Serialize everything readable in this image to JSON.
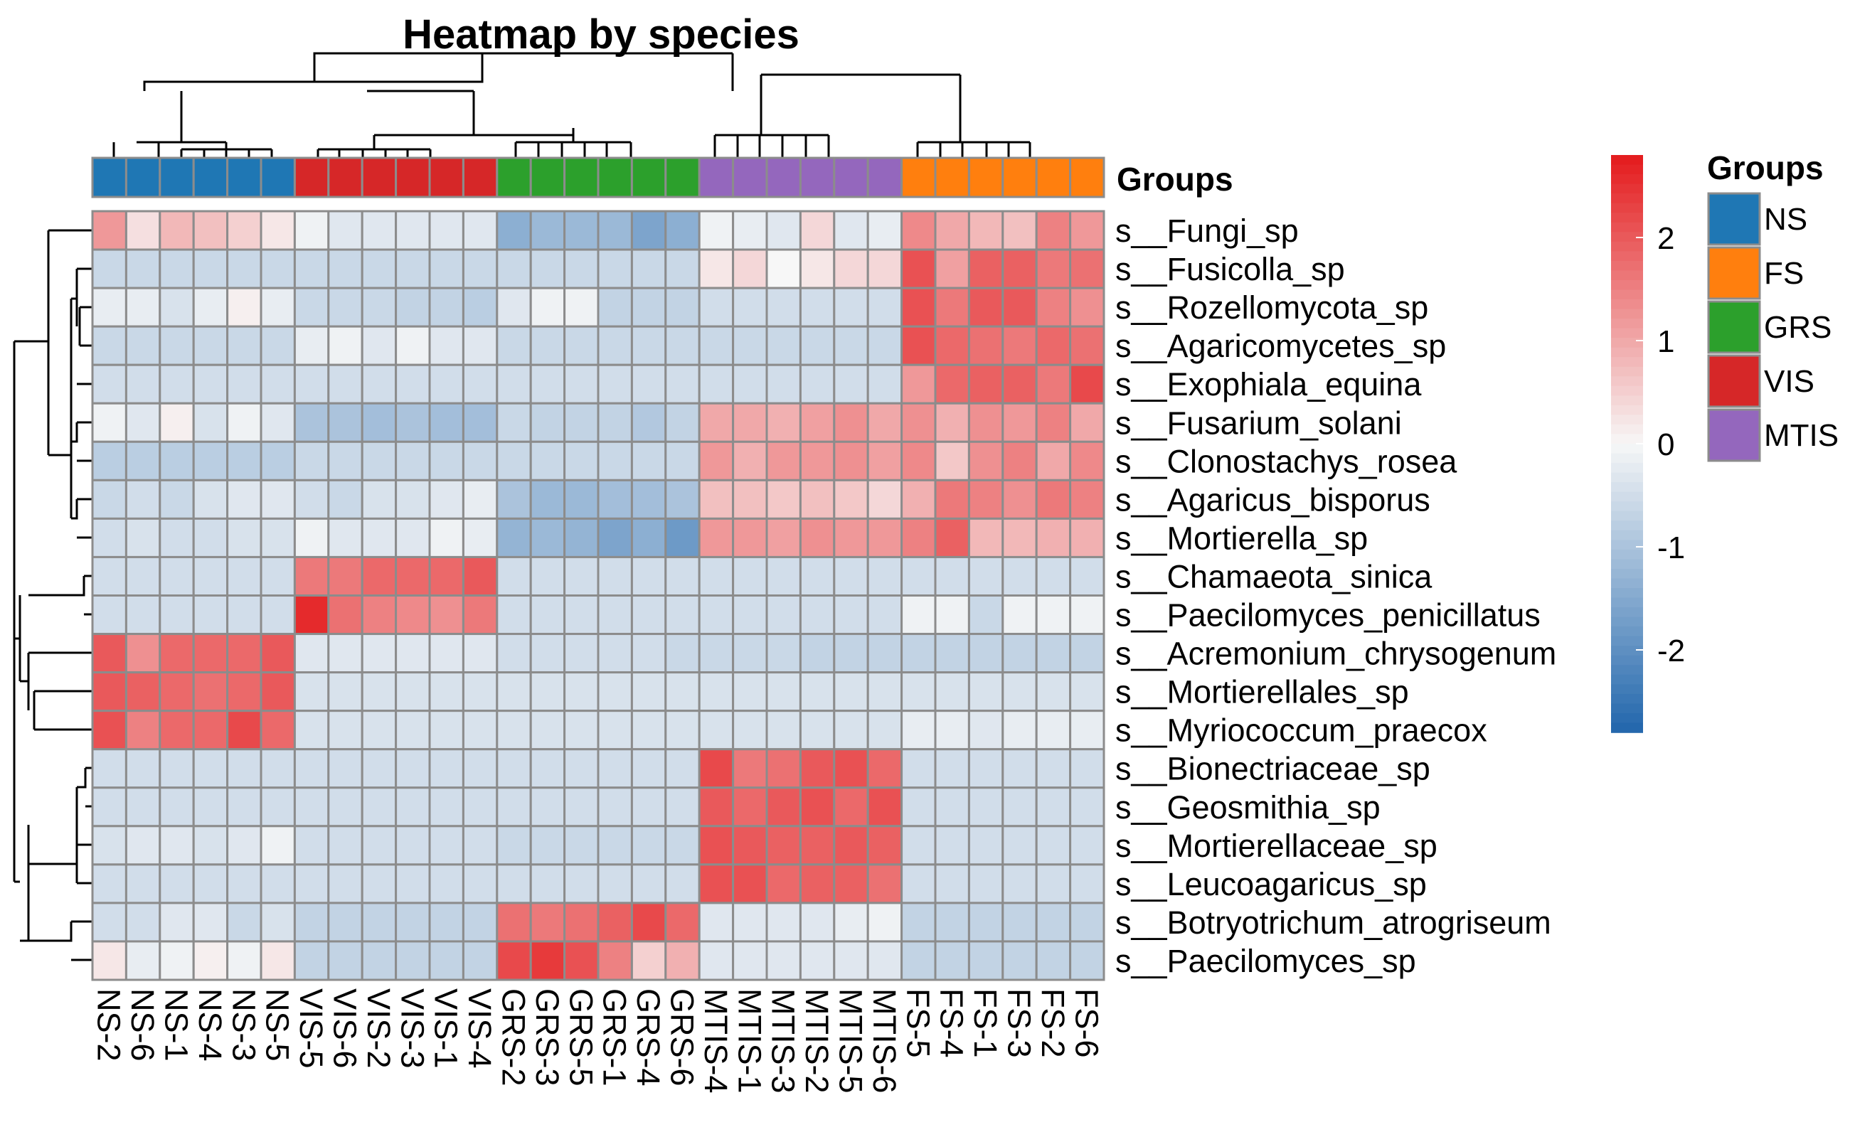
{
  "chart_data": {
    "type": "heatmap",
    "title": "Heatmap by species",
    "annotation_label": "Groups",
    "columns": [
      "NS-2",
      "NS-6",
      "NS-1",
      "NS-4",
      "NS-3",
      "NS-5",
      "VIS-5",
      "VIS-6",
      "VIS-2",
      "VIS-3",
      "VIS-1",
      "VIS-4",
      "GRS-2",
      "GRS-3",
      "GRS-5",
      "GRS-1",
      "GRS-4",
      "GRS-6",
      "MTIS-4",
      "MTIS-1",
      "MTIS-3",
      "MTIS-2",
      "MTIS-5",
      "MTIS-6",
      "FS-5",
      "FS-4",
      "FS-1",
      "FS-3",
      "FS-2",
      "FS-6"
    ],
    "column_groups": [
      "NS",
      "NS",
      "NS",
      "NS",
      "NS",
      "NS",
      "VIS",
      "VIS",
      "VIS",
      "VIS",
      "VIS",
      "VIS",
      "GRS",
      "GRS",
      "GRS",
      "GRS",
      "GRS",
      "GRS",
      "MTIS",
      "MTIS",
      "MTIS",
      "MTIS",
      "MTIS",
      "MTIS",
      "FS",
      "FS",
      "FS",
      "FS",
      "FS",
      "FS"
    ],
    "rows": [
      "s__Fungi_sp",
      "s__Fusicolla_sp",
      "s__Rozellomycota_sp",
      "s__Agaricomycetes_sp",
      "s__Exophiala_equina",
      "s__Fusarium_solani",
      "s__Clonostachys_rosea",
      "s__Agaricus_bisporus",
      "s__Mortierella_sp",
      "s__Chamaeota_sinica",
      "s__Paecilomyces_penicillatus",
      "s__Acremonium_chrysogenum",
      "s__Mortierellales_sp",
      "s__Myriococcum_praecox",
      "s__Bionectriaceae_sp",
      "s__Geosmithia_sp",
      "s__Mortierellaceae_sp",
      "s__Leucoagaricus_sp",
      "s__Botryotrichum_atrogriseum",
      "s__Paecilomyces_sp"
    ],
    "values": [
      [
        1.2,
        0.3,
        0.8,
        0.7,
        0.5,
        0.2,
        -0.1,
        -0.3,
        -0.3,
        -0.3,
        -0.3,
        -0.3,
        -1.4,
        -1.2,
        -1.2,
        -1.2,
        -1.6,
        -1.4,
        -0.1,
        -0.2,
        -0.3,
        0.4,
        -0.3,
        -0.2,
        1.4,
        1.0,
        0.8,
        0.7,
        1.5,
        1.2
      ],
      [
        -0.6,
        -0.6,
        -0.6,
        -0.6,
        -0.6,
        -0.6,
        -0.6,
        -0.6,
        -0.6,
        -0.6,
        -0.6,
        -0.6,
        -0.6,
        -0.6,
        -0.6,
        -0.6,
        -0.6,
        -0.6,
        0.2,
        0.4,
        0.0,
        0.2,
        0.4,
        0.4,
        2.1,
        1.1,
        1.9,
        1.9,
        1.6,
        1.7
      ],
      [
        -0.2,
        -0.2,
        -0.4,
        -0.2,
        0.1,
        -0.2,
        -0.6,
        -0.6,
        -0.6,
        -0.7,
        -0.7,
        -0.8,
        -0.3,
        -0.1,
        -0.1,
        -0.7,
        -0.7,
        -0.7,
        -0.5,
        -0.5,
        -0.5,
        -0.5,
        -0.5,
        -0.5,
        2.1,
        1.6,
        2.0,
        2.0,
        1.5,
        1.3
      ],
      [
        -0.6,
        -0.6,
        -0.6,
        -0.6,
        -0.6,
        -0.6,
        -0.2,
        -0.1,
        -0.3,
        -0.1,
        -0.3,
        -0.3,
        -0.6,
        -0.6,
        -0.6,
        -0.6,
        -0.6,
        -0.6,
        -0.6,
        -0.6,
        -0.6,
        -0.6,
        -0.6,
        -0.6,
        2.1,
        1.8,
        1.7,
        1.6,
        1.8,
        1.7
      ],
      [
        -0.5,
        -0.5,
        -0.5,
        -0.5,
        -0.5,
        -0.5,
        -0.5,
        -0.5,
        -0.5,
        -0.5,
        -0.5,
        -0.5,
        -0.5,
        -0.5,
        -0.5,
        -0.5,
        -0.5,
        -0.5,
        -0.5,
        -0.5,
        -0.5,
        -0.5,
        -0.5,
        -0.5,
        1.2,
        1.8,
        1.9,
        1.9,
        1.6,
        2.2
      ],
      [
        -0.1,
        -0.3,
        0.1,
        -0.4,
        -0.1,
        -0.3,
        -1.0,
        -1.0,
        -1.1,
        -1.0,
        -1.1,
        -1.1,
        -0.6,
        -0.7,
        -0.7,
        -0.7,
        -0.9,
        -0.7,
        1.0,
        1.0,
        0.9,
        1.1,
        1.3,
        1.0,
        1.3,
        0.9,
        1.3,
        1.2,
        1.5,
        1.0
      ],
      [
        -0.8,
        -0.8,
        -0.8,
        -0.8,
        -0.8,
        -0.8,
        -0.6,
        -0.6,
        -0.6,
        -0.6,
        -0.6,
        -0.6,
        -0.6,
        -0.6,
        -0.6,
        -0.6,
        -0.6,
        -0.6,
        1.2,
        0.9,
        1.2,
        1.2,
        1.3,
        1.1,
        1.4,
        0.6,
        1.3,
        1.5,
        1.0,
        1.4
      ],
      [
        -0.6,
        -0.5,
        -0.6,
        -0.4,
        -0.3,
        -0.3,
        -0.5,
        -0.6,
        -0.4,
        -0.4,
        -0.3,
        -0.2,
        -1.0,
        -1.2,
        -1.2,
        -1.1,
        -1.1,
        -1.0,
        0.7,
        0.7,
        0.6,
        0.7,
        0.6,
        0.4,
        0.9,
        1.6,
        1.5,
        1.3,
        1.6,
        1.5
      ],
      [
        -0.5,
        -0.4,
        -0.5,
        -0.5,
        -0.4,
        -0.4,
        -0.1,
        -0.3,
        -0.3,
        -0.3,
        -0.1,
        -0.2,
        -1.3,
        -1.2,
        -1.3,
        -1.6,
        -1.4,
        -1.8,
        1.2,
        1.2,
        1.1,
        1.3,
        1.2,
        1.2,
        1.5,
        1.9,
        0.8,
        0.8,
        0.9,
        0.9
      ],
      [
        -0.5,
        -0.5,
        -0.5,
        -0.5,
        -0.5,
        -0.5,
        1.6,
        1.6,
        1.8,
        1.8,
        1.8,
        2.0,
        -0.5,
        -0.5,
        -0.5,
        -0.5,
        -0.5,
        -0.5,
        -0.5,
        -0.5,
        -0.5,
        -0.5,
        -0.5,
        -0.5,
        -0.5,
        -0.5,
        -0.5,
        -0.5,
        -0.5,
        -0.5
      ],
      [
        -0.5,
        -0.5,
        -0.5,
        -0.5,
        -0.5,
        -0.5,
        2.6,
        1.7,
        1.5,
        1.4,
        1.3,
        1.6,
        -0.5,
        -0.5,
        -0.5,
        -0.5,
        -0.5,
        -0.5,
        -0.5,
        -0.5,
        -0.5,
        -0.5,
        -0.5,
        -0.5,
        -0.1,
        -0.1,
        -0.6,
        -0.1,
        -0.1,
        -0.1
      ],
      [
        2.0,
        1.3,
        1.8,
        1.8,
        1.8,
        2.0,
        -0.3,
        -0.3,
        -0.3,
        -0.3,
        -0.3,
        -0.3,
        -0.5,
        -0.5,
        -0.5,
        -0.5,
        -0.5,
        -0.6,
        -0.6,
        -0.6,
        -0.6,
        -0.7,
        -0.7,
        -0.7,
        -0.7,
        -0.7,
        -0.7,
        -0.7,
        -0.7,
        -0.7
      ],
      [
        2.0,
        1.9,
        1.8,
        1.7,
        1.8,
        2.0,
        -0.4,
        -0.4,
        -0.4,
        -0.4,
        -0.4,
        -0.4,
        -0.4,
        -0.4,
        -0.4,
        -0.4,
        -0.4,
        -0.4,
        -0.4,
        -0.4,
        -0.4,
        -0.4,
        -0.4,
        -0.4,
        -0.4,
        -0.4,
        -0.4,
        -0.4,
        -0.4,
        -0.4
      ],
      [
        2.1,
        1.5,
        1.8,
        1.8,
        2.2,
        1.8,
        -0.4,
        -0.4,
        -0.4,
        -0.4,
        -0.4,
        -0.4,
        -0.4,
        -0.4,
        -0.4,
        -0.4,
        -0.4,
        -0.4,
        -0.4,
        -0.4,
        -0.4,
        -0.4,
        -0.4,
        -0.4,
        -0.2,
        -0.2,
        -0.3,
        -0.2,
        -0.2,
        -0.2
      ],
      [
        -0.5,
        -0.5,
        -0.5,
        -0.5,
        -0.5,
        -0.5,
        -0.5,
        -0.5,
        -0.5,
        -0.5,
        -0.5,
        -0.5,
        -0.5,
        -0.5,
        -0.5,
        -0.5,
        -0.5,
        -0.5,
        2.2,
        1.6,
        1.7,
        2.0,
        2.1,
        1.8,
        -0.5,
        -0.5,
        -0.5,
        -0.5,
        -0.5,
        -0.5
      ],
      [
        -0.5,
        -0.5,
        -0.5,
        -0.5,
        -0.5,
        -0.5,
        -0.5,
        -0.5,
        -0.5,
        -0.5,
        -0.5,
        -0.5,
        -0.5,
        -0.5,
        -0.5,
        -0.5,
        -0.5,
        -0.5,
        2.0,
        1.8,
        2.0,
        2.1,
        1.8,
        2.1,
        -0.5,
        -0.5,
        -0.5,
        -0.5,
        -0.5,
        -0.5
      ],
      [
        -0.4,
        -0.3,
        -0.3,
        -0.4,
        -0.3,
        -0.1,
        -0.5,
        -0.5,
        -0.5,
        -0.5,
        -0.5,
        -0.5,
        -0.6,
        -0.6,
        -0.6,
        -0.6,
        -0.6,
        -0.6,
        2.1,
        2.0,
        1.9,
        1.9,
        2.0,
        1.9,
        -0.5,
        -0.5,
        -0.5,
        -0.5,
        -0.5,
        -0.5
      ],
      [
        -0.5,
        -0.5,
        -0.5,
        -0.5,
        -0.5,
        -0.5,
        -0.5,
        -0.5,
        -0.5,
        -0.5,
        -0.5,
        -0.5,
        -0.5,
        -0.5,
        -0.5,
        -0.5,
        -0.5,
        -0.5,
        2.1,
        2.1,
        1.8,
        1.9,
        1.9,
        1.7,
        -0.5,
        -0.5,
        -0.5,
        -0.5,
        -0.5,
        -0.5
      ],
      [
        -0.5,
        -0.5,
        -0.3,
        -0.3,
        -0.6,
        -0.4,
        -0.7,
        -0.7,
        -0.7,
        -0.7,
        -0.7,
        -0.7,
        1.7,
        1.6,
        1.7,
        1.9,
        2.2,
        1.8,
        -0.3,
        -0.3,
        -0.3,
        -0.3,
        -0.2,
        -0.1,
        -0.7,
        -0.7,
        -0.7,
        -0.7,
        -0.7,
        -0.7
      ],
      [
        0.2,
        -0.2,
        -0.1,
        0.1,
        -0.1,
        0.2,
        -0.7,
        -0.7,
        -0.7,
        -0.7,
        -0.7,
        -0.7,
        2.2,
        2.4,
        2.1,
        1.5,
        0.5,
        0.9,
        -0.3,
        -0.3,
        -0.3,
        -0.3,
        -0.3,
        -0.3,
        -0.7,
        -0.7,
        -0.7,
        -0.7,
        -0.7,
        -0.7
      ]
    ],
    "color_scale": {
      "min": -2.8,
      "max": 2.8,
      "low_color": "#2166ac",
      "mid_color": "#f7f7f7",
      "high_color": "#e41a1c",
      "ticks": [
        2,
        1,
        0,
        -1,
        -2
      ]
    },
    "groups": [
      {
        "name": "NS",
        "color": "#1f77b4"
      },
      {
        "name": "FS",
        "color": "#ff7f0e"
      },
      {
        "name": "GRS",
        "color": "#2ca02c"
      },
      {
        "name": "VIS",
        "color": "#d62728"
      },
      {
        "name": "MTIS",
        "color": "#9467bd"
      }
    ]
  }
}
